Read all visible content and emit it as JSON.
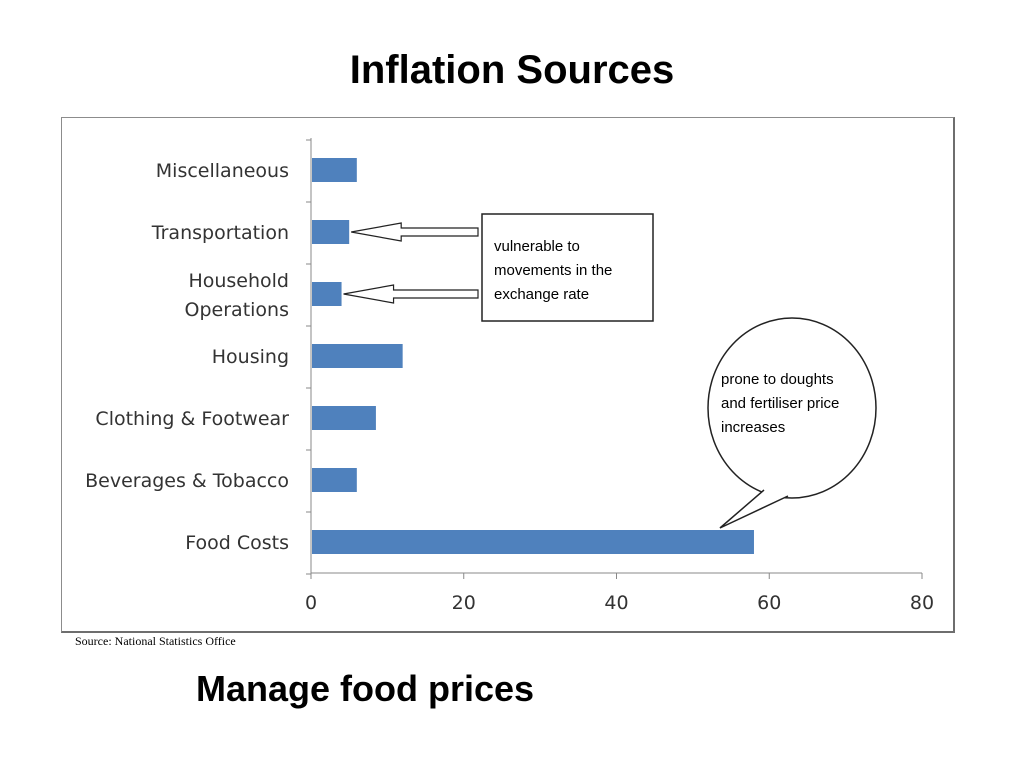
{
  "title": "Inflation Sources",
  "source": "Source: National Statistics Office",
  "bottom_text": "Manage food prices",
  "chart_data": {
    "type": "bar",
    "orientation": "horizontal",
    "categories": [
      "Miscellaneous",
      "Transportation",
      "Household Operations",
      "Housing",
      "Clothing & Footwear",
      "Beverages & Tobacco",
      "Food Costs"
    ],
    "category_lines": [
      [
        "Miscellaneous"
      ],
      [
        "Transportation"
      ],
      [
        "Household",
        "Operations"
      ],
      [
        "Housing"
      ],
      [
        "Clothing & Footwear"
      ],
      [
        "Beverages & Tobacco"
      ],
      [
        "Food Costs"
      ]
    ],
    "values": [
      6,
      5,
      4,
      12,
      8.5,
      6,
      58
    ],
    "xlim": [
      0,
      80
    ],
    "xticks": [
      0,
      20,
      40,
      60,
      80
    ],
    "grid": false,
    "bar_color": "#4f81bd",
    "annotations": [
      {
        "lines": [
          "vulnerable to",
          "movements in the",
          "exchange rate"
        ],
        "targets": [
          "Transportation",
          "Household Operations"
        ],
        "shape": "box"
      },
      {
        "lines": [
          "prone to doughts",
          "and fertiliser price",
          "increases"
        ],
        "targets": [
          "Food Costs"
        ],
        "shape": "speech-bubble"
      }
    ]
  }
}
